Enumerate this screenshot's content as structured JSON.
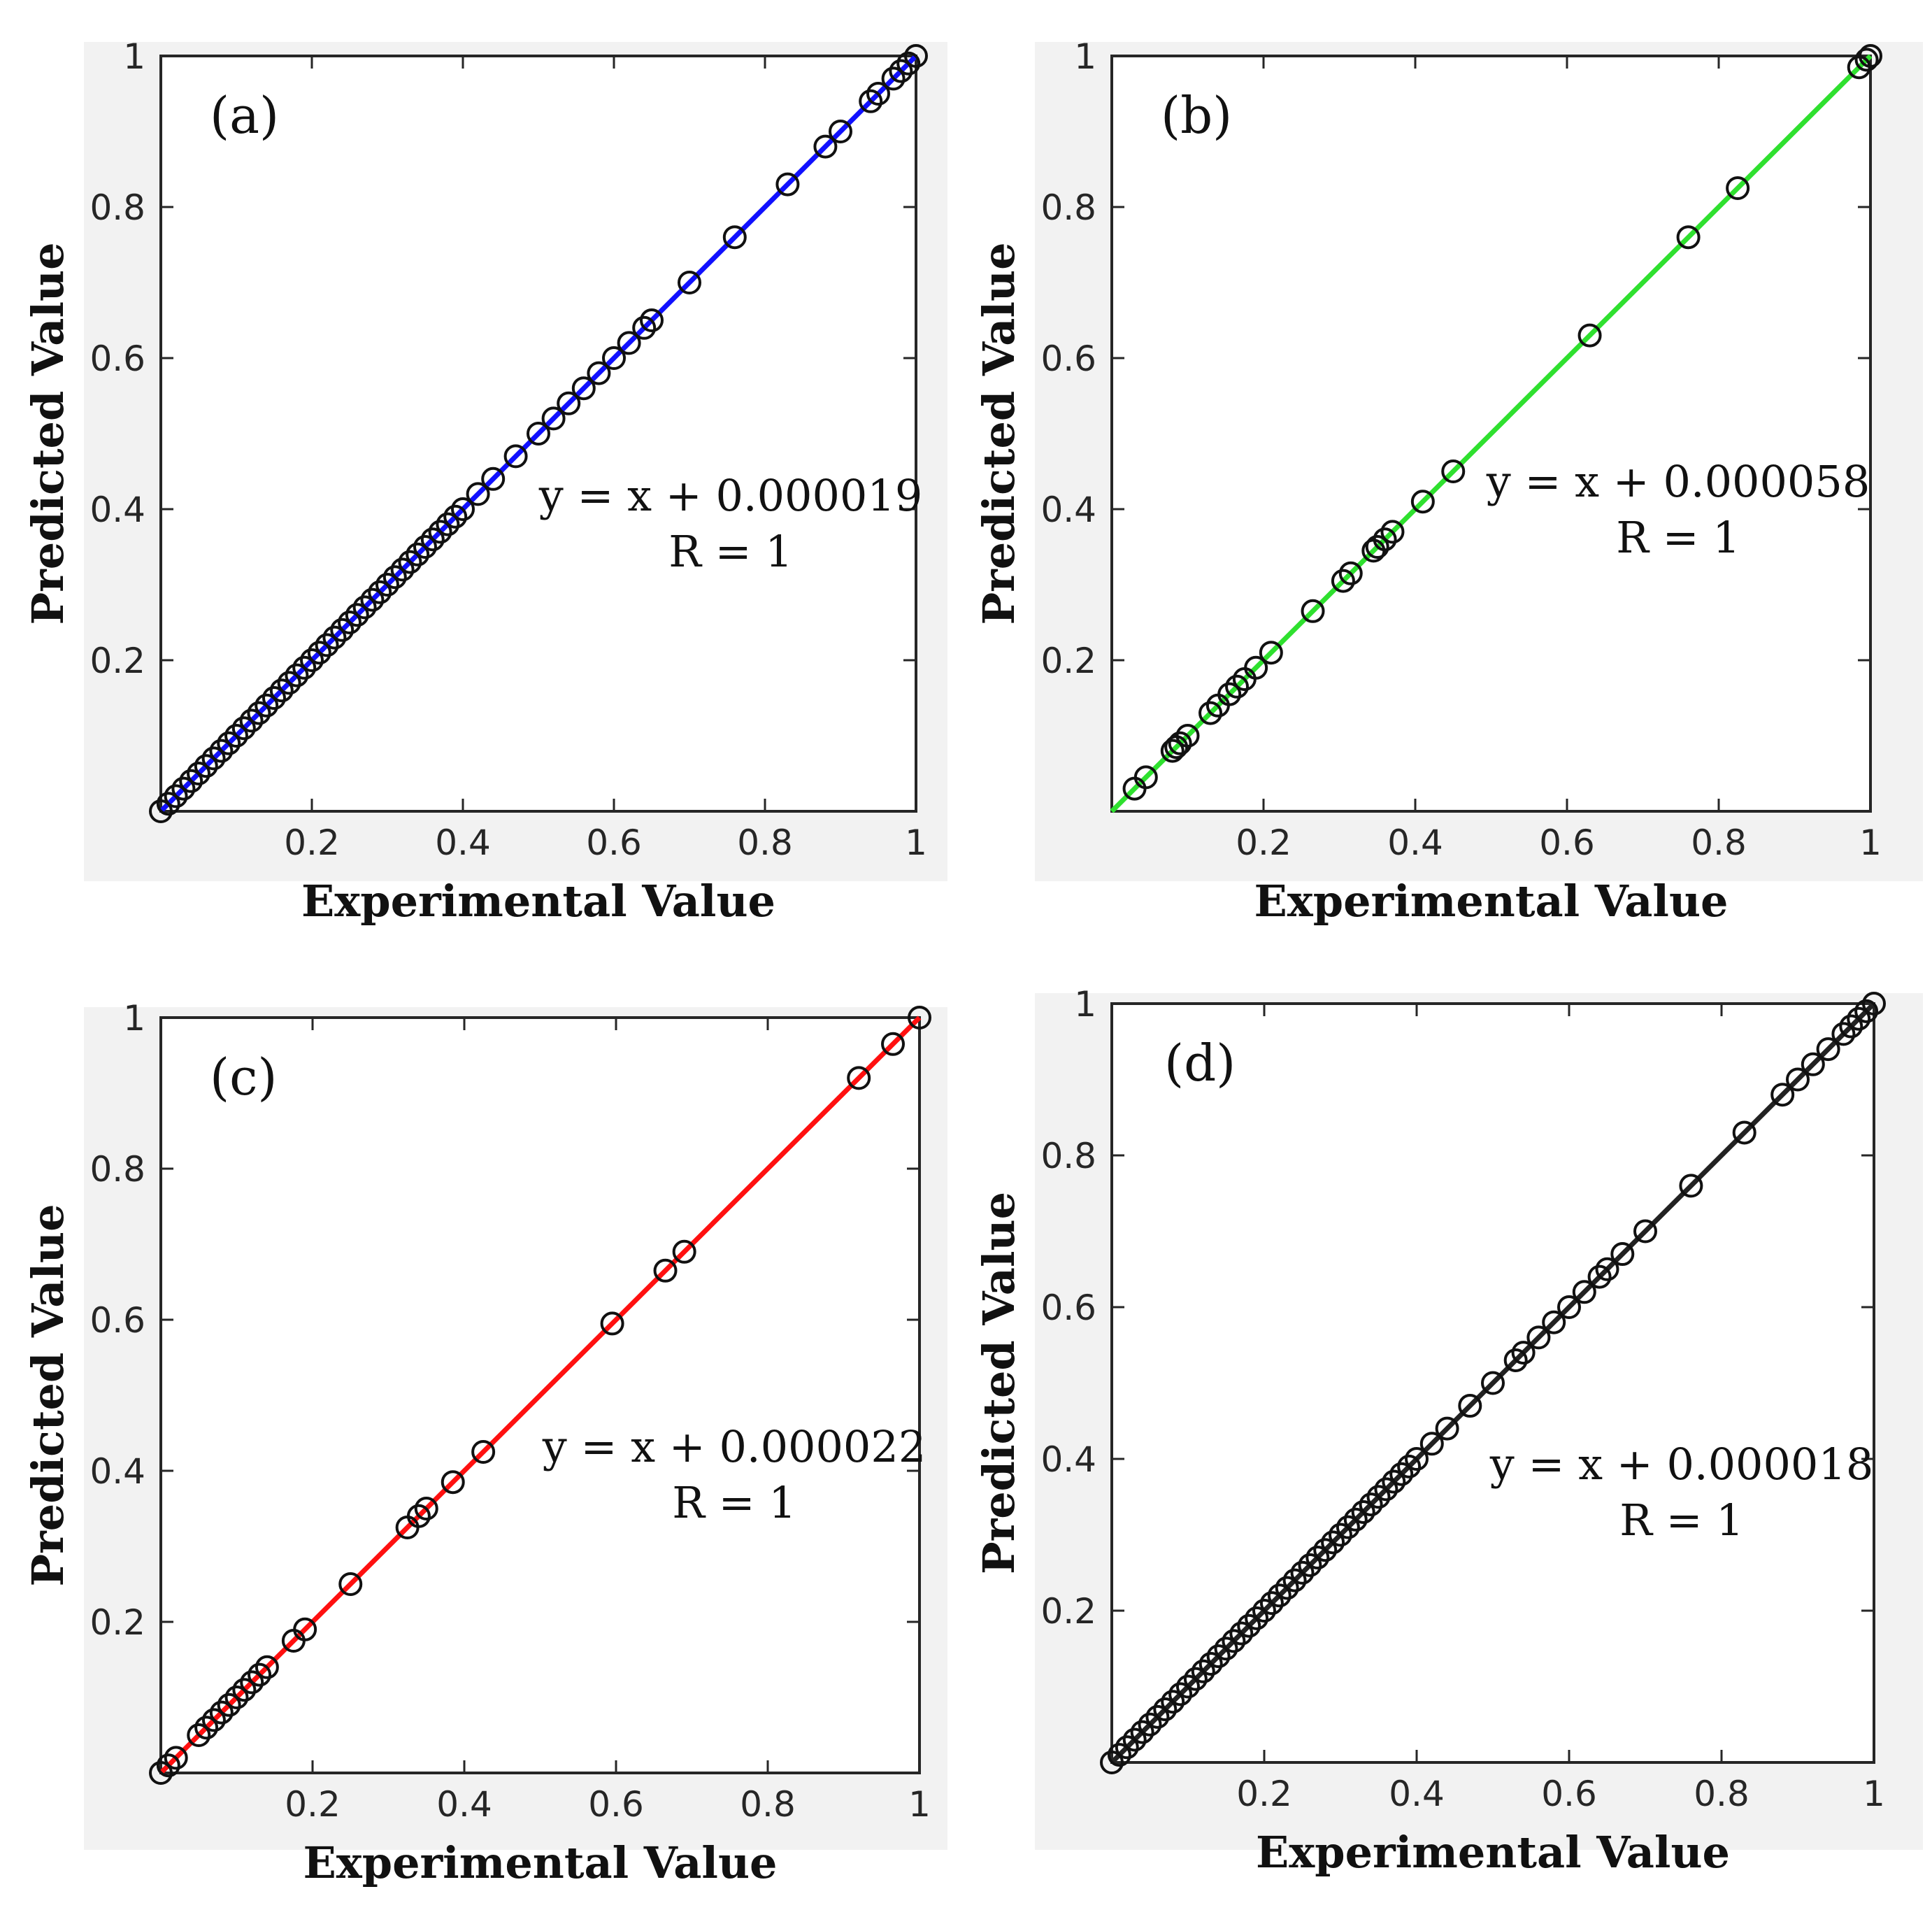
{
  "chart_data": [
    {
      "type": "scatter",
      "panel_label": "(a)",
      "xlabel": "Experimental Value",
      "ylabel": "Predicted Value",
      "xlim": [
        0,
        1
      ],
      "ylim": [
        0,
        1
      ],
      "xticks": [
        "0.2",
        "0.4",
        "0.6",
        "0.8",
        "1"
      ],
      "yticks": [
        "0.2",
        "0.4",
        "0.6",
        "0.8",
        "1"
      ],
      "fit_line_color": "#1010ff",
      "fit_equation": "y = x + 0.000019",
      "correlation": "R = 1",
      "grid": false,
      "series": [
        {
          "name": "data",
          "x": [
            0.0,
            0.01,
            0.02,
            0.03,
            0.04,
            0.05,
            0.06,
            0.07,
            0.08,
            0.09,
            0.1,
            0.11,
            0.12,
            0.13,
            0.14,
            0.15,
            0.16,
            0.17,
            0.18,
            0.19,
            0.2,
            0.21,
            0.22,
            0.23,
            0.24,
            0.25,
            0.26,
            0.27,
            0.28,
            0.29,
            0.3,
            0.31,
            0.32,
            0.33,
            0.34,
            0.35,
            0.36,
            0.37,
            0.38,
            0.39,
            0.4,
            0.42,
            0.44,
            0.47,
            0.5,
            0.52,
            0.54,
            0.56,
            0.58,
            0.6,
            0.62,
            0.64,
            0.65,
            0.7,
            0.76,
            0.83,
            0.88,
            0.9,
            0.94,
            0.95,
            0.97,
            0.98,
            0.99,
            1.0
          ],
          "y": [
            0.0,
            0.01,
            0.02,
            0.03,
            0.04,
            0.05,
            0.06,
            0.07,
            0.08,
            0.09,
            0.1,
            0.11,
            0.12,
            0.13,
            0.14,
            0.15,
            0.16,
            0.17,
            0.18,
            0.19,
            0.2,
            0.21,
            0.22,
            0.23,
            0.24,
            0.25,
            0.26,
            0.27,
            0.28,
            0.29,
            0.3,
            0.31,
            0.32,
            0.33,
            0.34,
            0.35,
            0.36,
            0.37,
            0.38,
            0.39,
            0.4,
            0.42,
            0.44,
            0.47,
            0.5,
            0.52,
            0.54,
            0.56,
            0.58,
            0.6,
            0.62,
            0.64,
            0.65,
            0.7,
            0.76,
            0.83,
            0.88,
            0.9,
            0.94,
            0.95,
            0.97,
            0.98,
            0.99,
            1.0
          ]
        }
      ]
    },
    {
      "type": "scatter",
      "panel_label": "(b)",
      "xlabel": "Experimental Value",
      "ylabel": "Predicted Value",
      "xlim": [
        0,
        1
      ],
      "ylim": [
        0,
        1
      ],
      "xticks": [
        "0.2",
        "0.4",
        "0.6",
        "0.8",
        "1"
      ],
      "yticks": [
        "0.2",
        "0.4",
        "0.6",
        "0.8",
        "1"
      ],
      "fit_line_color": "#2fe02f",
      "fit_equation": "y = x + 0.000058",
      "correlation": "R = 1",
      "grid": false,
      "series": [
        {
          "name": "data",
          "x": [
            0.03,
            0.045,
            0.08,
            0.085,
            0.09,
            0.1,
            0.13,
            0.14,
            0.155,
            0.165,
            0.175,
            0.19,
            0.21,
            0.265,
            0.305,
            0.315,
            0.345,
            0.35,
            0.36,
            0.37,
            0.41,
            0.45,
            0.63,
            0.76,
            0.825,
            0.985,
            0.995,
            1.0
          ],
          "y": [
            0.03,
            0.045,
            0.08,
            0.085,
            0.09,
            0.1,
            0.13,
            0.14,
            0.155,
            0.165,
            0.175,
            0.19,
            0.21,
            0.265,
            0.305,
            0.315,
            0.345,
            0.35,
            0.36,
            0.37,
            0.41,
            0.45,
            0.63,
            0.76,
            0.825,
            0.985,
            0.995,
            1.0
          ]
        }
      ]
    },
    {
      "type": "scatter",
      "panel_label": "(c)",
      "xlabel": "Experimental Value",
      "ylabel": "Predicted Value",
      "xlim": [
        0,
        1
      ],
      "ylim": [
        0,
        1
      ],
      "xticks": [
        "0.2",
        "0.4",
        "0.6",
        "0.8",
        "1"
      ],
      "yticks": [
        "0.2",
        "0.4",
        "0.6",
        "0.8",
        "1"
      ],
      "fit_line_color": "#ff1010",
      "fit_equation": "y = x + 0.000022",
      "correlation": "R = 1",
      "grid": false,
      "series": [
        {
          "name": "data",
          "x": [
            0.0,
            0.01,
            0.02,
            0.05,
            0.06,
            0.07,
            0.08,
            0.09,
            0.1,
            0.11,
            0.12,
            0.13,
            0.14,
            0.175,
            0.19,
            0.25,
            0.325,
            0.34,
            0.35,
            0.385,
            0.425,
            0.595,
            0.665,
            0.69,
            0.92,
            0.965,
            1.0
          ],
          "y": [
            0.0,
            0.01,
            0.02,
            0.05,
            0.06,
            0.07,
            0.08,
            0.09,
            0.1,
            0.11,
            0.12,
            0.13,
            0.14,
            0.175,
            0.19,
            0.25,
            0.325,
            0.34,
            0.35,
            0.385,
            0.425,
            0.595,
            0.665,
            0.69,
            0.92,
            0.965,
            1.0
          ]
        }
      ]
    },
    {
      "type": "scatter",
      "panel_label": "(d)",
      "xlabel": "Experimental Value",
      "ylabel": "Predicted Value",
      "xlim": [
        0,
        1
      ],
      "ylim": [
        0,
        1
      ],
      "xticks": [
        "0.2",
        "0.4",
        "0.6",
        "0.8",
        "1"
      ],
      "yticks": [
        "0.2",
        "0.4",
        "0.6",
        "0.8",
        "1"
      ],
      "fit_line_color": "#222222",
      "fit_equation": "y = x + 0.000018",
      "correlation": "R = 1",
      "grid": false,
      "series": [
        {
          "name": "data",
          "x": [
            0.0,
            0.01,
            0.02,
            0.03,
            0.04,
            0.05,
            0.06,
            0.07,
            0.08,
            0.09,
            0.1,
            0.11,
            0.12,
            0.13,
            0.14,
            0.15,
            0.16,
            0.17,
            0.18,
            0.19,
            0.2,
            0.21,
            0.22,
            0.23,
            0.24,
            0.25,
            0.26,
            0.27,
            0.28,
            0.29,
            0.3,
            0.31,
            0.32,
            0.33,
            0.34,
            0.35,
            0.36,
            0.37,
            0.38,
            0.39,
            0.4,
            0.42,
            0.44,
            0.47,
            0.5,
            0.53,
            0.54,
            0.56,
            0.58,
            0.6,
            0.62,
            0.64,
            0.65,
            0.67,
            0.7,
            0.76,
            0.83,
            0.88,
            0.9,
            0.92,
            0.94,
            0.96,
            0.97,
            0.98,
            0.99,
            1.0
          ],
          "y": [
            0.0,
            0.01,
            0.02,
            0.03,
            0.04,
            0.05,
            0.06,
            0.07,
            0.08,
            0.09,
            0.1,
            0.11,
            0.12,
            0.13,
            0.14,
            0.15,
            0.16,
            0.17,
            0.18,
            0.19,
            0.2,
            0.21,
            0.22,
            0.23,
            0.24,
            0.25,
            0.26,
            0.27,
            0.28,
            0.29,
            0.3,
            0.31,
            0.32,
            0.33,
            0.34,
            0.35,
            0.36,
            0.37,
            0.38,
            0.39,
            0.4,
            0.42,
            0.44,
            0.47,
            0.5,
            0.53,
            0.54,
            0.56,
            0.58,
            0.6,
            0.62,
            0.64,
            0.65,
            0.67,
            0.7,
            0.76,
            0.83,
            0.88,
            0.9,
            0.92,
            0.94,
            0.96,
            0.97,
            0.98,
            0.99,
            1.0
          ]
        }
      ]
    }
  ]
}
